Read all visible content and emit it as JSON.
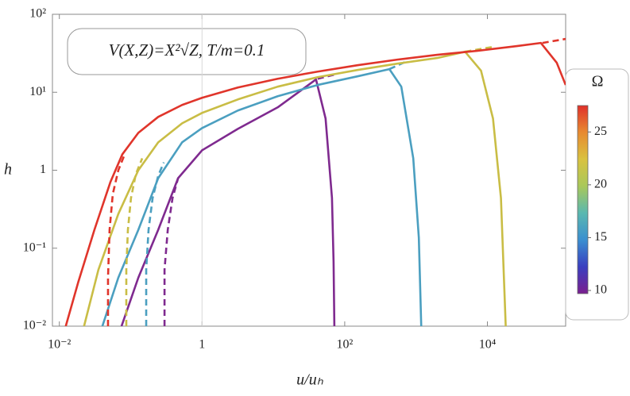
{
  "chart_data": {
    "type": "line",
    "annotation": "V(X,Z)=X²√Z, T/m=0.1",
    "x_label": "u/uₕ",
    "y_label": "h",
    "log_x": true,
    "log_y": true,
    "xlim": [
      0.008,
      125000
    ],
    "ylim": [
      0.01,
      100
    ],
    "xticks": [
      {
        "value": 0.01,
        "label": "10⁻²"
      },
      1,
      {
        "value": 100,
        "label": "10²"
      },
      {
        "value": 10000,
        "label": "10⁴"
      }
    ],
    "yticks": [
      {
        "value": 0.01,
        "label": "10⁻²"
      },
      {
        "value": 0.1,
        "label": "10⁻¹"
      },
      1,
      {
        "value": 10,
        "label": "10¹"
      },
      {
        "value": 100,
        "label": "10²"
      }
    ],
    "series": [
      {
        "color": "#7f2a8f",
        "dashed": false,
        "x": [
          0.0744,
          0.128,
          0.243,
          0.462,
          1,
          3.18,
          11.5,
          39.6,
          53.9,
          66.3,
          69.8,
          71.6
        ],
        "values": [
          0.01,
          0.0419,
          0.172,
          0.791,
          1.8,
          3.39,
          6.4,
          14.6,
          4.61,
          0.44,
          0.0671,
          0.01
        ]
      },
      {
        "color": "#7f2a8f",
        "dashed": true,
        "x": [
          0.298,
          0.298,
          0.331,
          0.386,
          0.462,
          null,
          41.7,
          79.3
        ],
        "values": [
          0.01,
          0.053,
          0.172,
          0.44,
          0.791,
          null,
          14.9,
          17.2
        ]
      },
      {
        "color": "#4b9fc0",
        "dashed": false,
        "x": [
          0.0401,
          0.0671,
          0.128,
          0.243,
          0.526,
          1,
          3.18,
          11.5,
          41.7,
          151,
          423,
          621,
          914,
          1094,
          1182
        ],
        "values": [
          0.01,
          0.0419,
          0.172,
          0.791,
          2.28,
          3.47,
          5.83,
          8.89,
          12.4,
          16.0,
          19.8,
          11.8,
          1.42,
          0.136,
          0.01
        ]
      },
      {
        "color": "#4b9fc0",
        "dashed": true,
        "x": [
          0.165,
          0.165,
          0.178,
          0.203,
          0.243,
          0.291,
          null,
          423,
          744
        ],
        "values": [
          0.01,
          0.053,
          0.172,
          0.44,
          0.849,
          1.26,
          null,
          19.8,
          25.0
        ]
      },
      {
        "color": "#c9bd45",
        "dashed": false,
        "x": [
          0.0222,
          0.0353,
          0.0671,
          0.128,
          0.243,
          0.526,
          1,
          3.18,
          11.5,
          41.7,
          151,
          546,
          1977,
          4866,
          8140,
          11980,
          15490,
          18070
        ],
        "values": [
          0.01,
          0.053,
          0.275,
          1,
          2.28,
          4.0,
          5.43,
          8.09,
          11.8,
          15.6,
          19.3,
          23.3,
          27.5,
          33.1,
          18.9,
          4.61,
          0.44,
          0.01
        ]
      },
      {
        "color": "#c9bd45",
        "dashed": true,
        "x": [
          0.0868,
          0.0868,
          0.0914,
          0.101,
          0.118,
          0.145,
          null,
          4866,
          11980
        ],
        "values": [
          0.01,
          0.053,
          0.172,
          0.44,
          0.889,
          1.42,
          null,
          33.1,
          38.2
        ]
      },
      {
        "color": "#e0352b",
        "dashed": false,
        "x": [
          0.0123,
          0.0185,
          0.031,
          0.0519,
          0.0764,
          0.128,
          0.243,
          0.526,
          1,
          3.18,
          11.5,
          41.7,
          151,
          546,
          1977,
          7161,
          25900,
          56100,
          93800,
          125000
        ],
        "values": [
          0.01,
          0.0373,
          0.172,
          0.703,
          1.6,
          3.02,
          4.83,
          6.87,
          8.49,
          11.5,
          14.9,
          18.4,
          22.2,
          26.2,
          30.2,
          34.0,
          39.1,
          42.9,
          23.9,
          12.4
        ]
      },
      {
        "color": "#e0352b",
        "dashed": true,
        "x": [
          0.0481,
          0.0481,
          0.0506,
          0.0561,
          0.0671,
          0.0824,
          null,
          59000,
          125000
        ],
        "values": [
          0.01,
          0.0419,
          0.172,
          0.494,
          1,
          1.6,
          null,
          42.9,
          48.3
        ]
      }
    ],
    "colorbar": {
      "title": "Ω",
      "lim": [
        9.7,
        27.5
      ],
      "ticks": [
        10,
        15,
        20,
        25
      ],
      "colors": [
        "#7a1f8f",
        "#3a3fc0",
        "#3b8fd0",
        "#5ab8b0",
        "#a9c85a",
        "#d9c240",
        "#e88a30",
        "#e0302a"
      ]
    }
  }
}
